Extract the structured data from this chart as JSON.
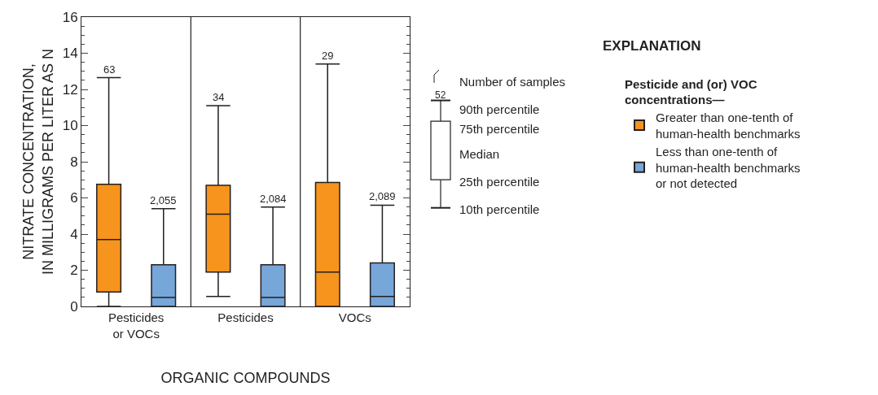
{
  "chart_data": {
    "type": "box",
    "xlabel": "ORGANIC COMPOUNDS",
    "ylabel": "NITRATE CONCENTRATION,\nIN MILLIGRAMS PER LITER AS N",
    "legend_title": "Pesticide and (or) VOC\nconcentrations—",
    "categories": [
      "Pesticides\nor VOCs",
      "Pesticides",
      "VOCs"
    ],
    "series": [
      {
        "name": "Greater than one-tenth of\nhuman-health benchmarks",
        "color": "#f7941d",
        "value_labels": [
          "63",
          "34",
          "29"
        ],
        "boxes": [
          {
            "low": 0,
            "q1": 0.8,
            "median": 3.7,
            "q3": 6.75,
            "high": 12.65
          },
          {
            "low": 0.55,
            "q1": 1.9,
            "median": 5.1,
            "q3": 6.7,
            "high": 11.1
          },
          {
            "low": 0,
            "q1": 0,
            "median": 1.9,
            "q3": 6.85,
            "high": 13.4
          }
        ]
      },
      {
        "name": "Less than one-tenth of\nhuman-health benchmarks\nor not detected",
        "color": "#77a6d8",
        "value_labels": [
          "2,055",
          "2,084",
          "2,089"
        ],
        "boxes": [
          {
            "low": 0,
            "q1": 0,
            "median": 0.5,
            "q3": 2.3,
            "high": 5.4
          },
          {
            "low": 0,
            "q1": 0,
            "median": 0.5,
            "q3": 2.3,
            "high": 5.5
          },
          {
            "low": 0,
            "q1": 0,
            "median": 0.55,
            "q3": 2.4,
            "high": 5.6
          }
        ]
      }
    ],
    "ylim": [
      0,
      16
    ],
    "yticks": [
      0,
      2,
      4,
      6,
      8,
      10,
      12,
      14,
      16
    ],
    "legend": "right",
    "annotations": [
      "EXPLANATION",
      "52",
      "Number of samples",
      "90th percentile",
      "75th percentile",
      "Median",
      "25th percentile",
      "10th percentile"
    ]
  }
}
